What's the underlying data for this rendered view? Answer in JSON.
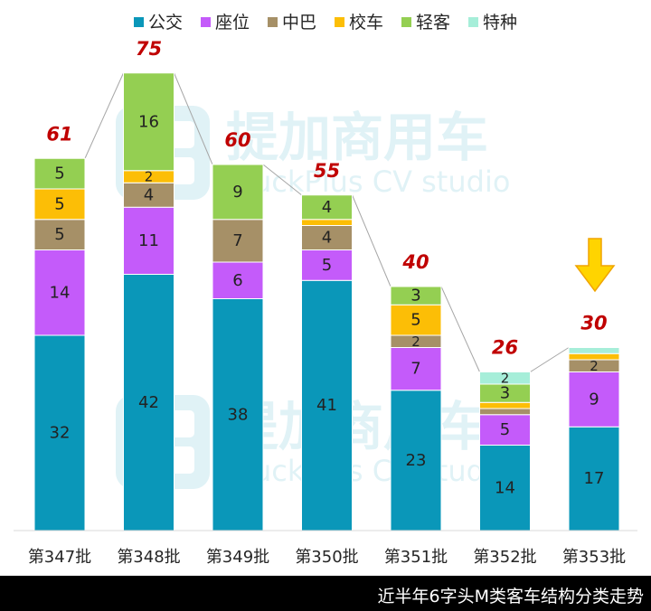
{
  "chart_data": {
    "type": "bar",
    "stacked": true,
    "categories": [
      "第347批",
      "第348批",
      "第349批",
      "第350批",
      "第351批",
      "第352批",
      "第353批"
    ],
    "series": [
      {
        "name": "公交",
        "color": "#0A97B9",
        "values": [
          32,
          42,
          38,
          41,
          23,
          14,
          17
        ]
      },
      {
        "name": "座位",
        "color": "#C45BFA",
        "values": [
          14,
          11,
          6,
          5,
          7,
          5,
          9
        ]
      },
      {
        "name": "中巴",
        "color": "#A69067",
        "values": [
          5,
          4,
          7,
          4,
          2,
          1,
          2
        ]
      },
      {
        "name": "校车",
        "color": "#FCBE06",
        "values": [
          5,
          2,
          0,
          1,
          5,
          1,
          1
        ]
      },
      {
        "name": "轻客",
        "color": "#94CF52",
        "values": [
          5,
          16,
          9,
          4,
          3,
          3,
          0
        ]
      },
      {
        "name": "特种",
        "color": "#A6EED9",
        "values": [
          0,
          0,
          0,
          0,
          0,
          2,
          1
        ]
      }
    ],
    "totals": [
      61,
      75,
      60,
      55,
      40,
      26,
      30
    ],
    "legend_position": "top",
    "grid": false
  },
  "watermark": {
    "brand": "提加商用车",
    "sub": "TruckPlus CV studio"
  },
  "footer": {
    "caption": "近半年6字头M类客车结构分类走势"
  }
}
